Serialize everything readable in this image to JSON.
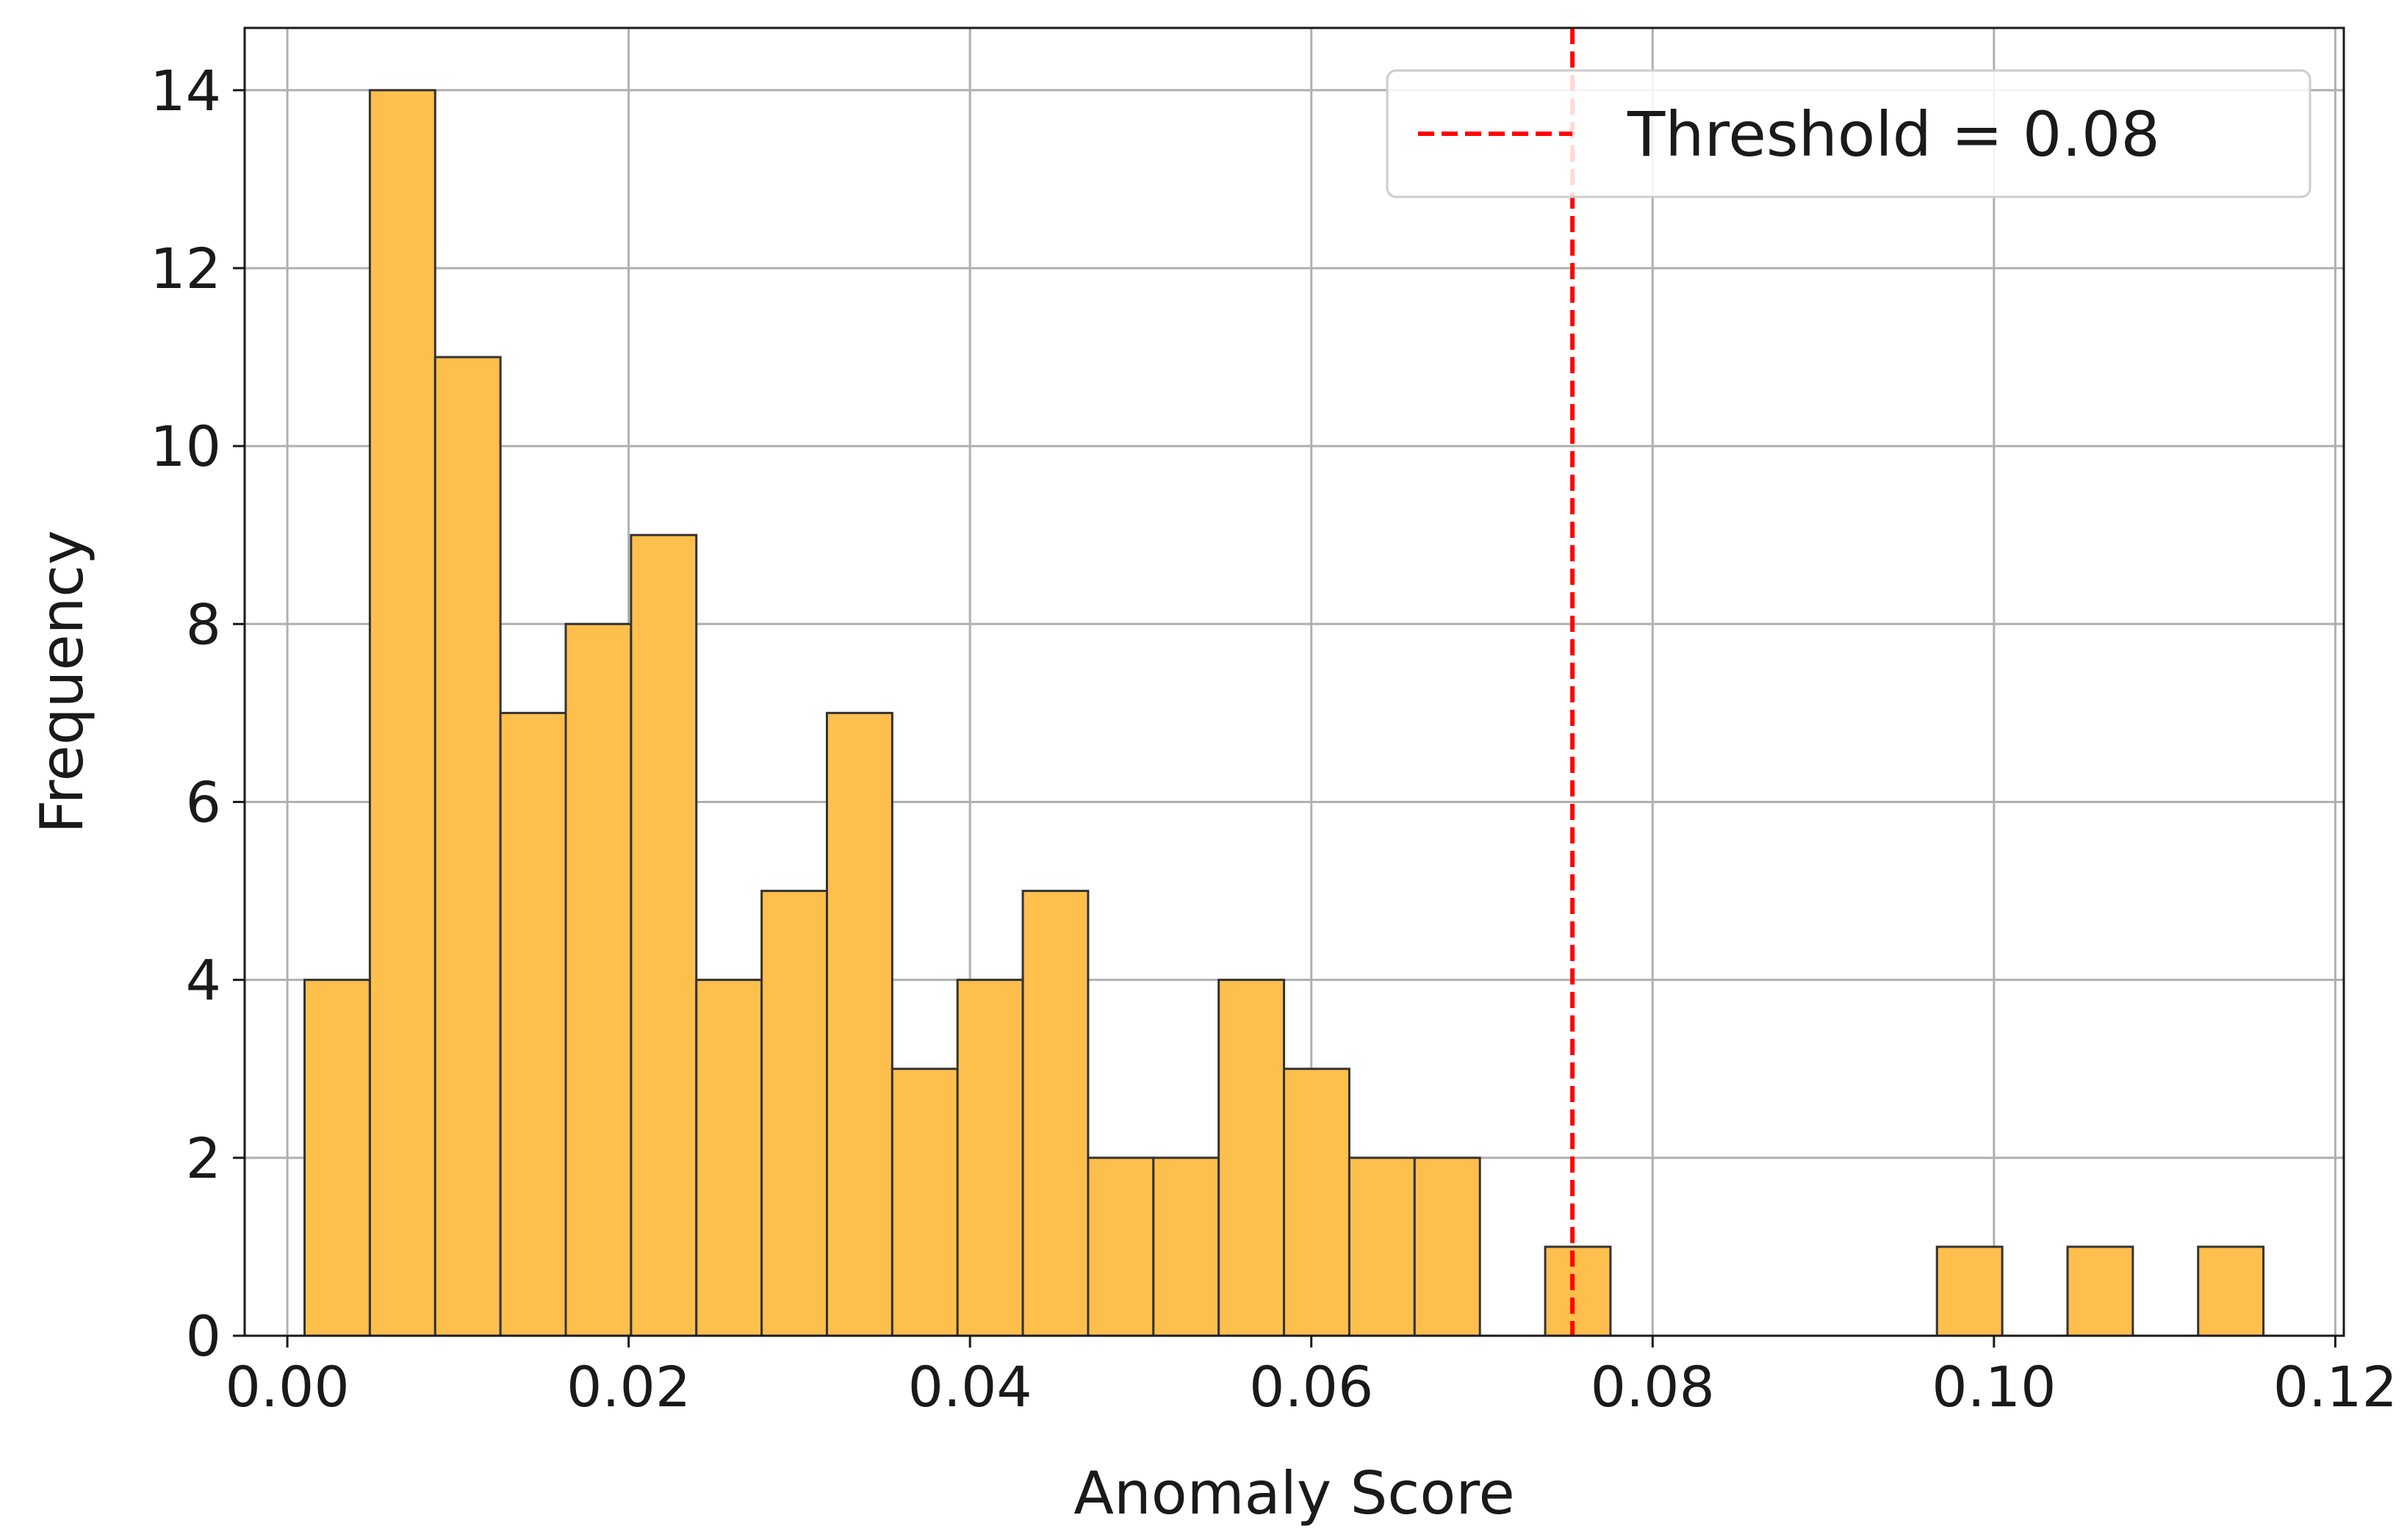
{
  "chart_data": {
    "type": "bar",
    "title": "",
    "xlabel": "Anomaly Score",
    "ylabel": "Frequency",
    "xlim": [
      -0.0025,
      0.1205
    ],
    "ylim": [
      0,
      14.7
    ],
    "xticks": [
      "0.00",
      "0.02",
      "0.04",
      "0.06",
      "0.08",
      "0.10",
      "0.12"
    ],
    "xtick_values": [
      0.0,
      0.02,
      0.04,
      0.06,
      0.08,
      0.1,
      0.12
    ],
    "yticks": [
      "0",
      "2",
      "4",
      "6",
      "8",
      "10",
      "12",
      "14"
    ],
    "ytick_values": [
      0,
      2,
      4,
      6,
      8,
      10,
      12,
      14
    ],
    "grid": true,
    "bins": {
      "start": 0.00101,
      "width": 0.003826,
      "counts": [
        4,
        14,
        11,
        7,
        8,
        9,
        4,
        5,
        7,
        3,
        4,
        5,
        2,
        2,
        4,
        3,
        2,
        2,
        0,
        1,
        0,
        0,
        0,
        0,
        0,
        1,
        0,
        1,
        0,
        1
      ]
    },
    "bar_color": "#FFBF4D",
    "edge_color": "#333333",
    "threshold": {
      "value": 0.0753,
      "label": "Threshold = 0.08",
      "color": "#FF0000",
      "style": "dashed"
    },
    "legend": {
      "placement": "top-right",
      "entries": [
        "Threshold = 0.08"
      ]
    }
  }
}
